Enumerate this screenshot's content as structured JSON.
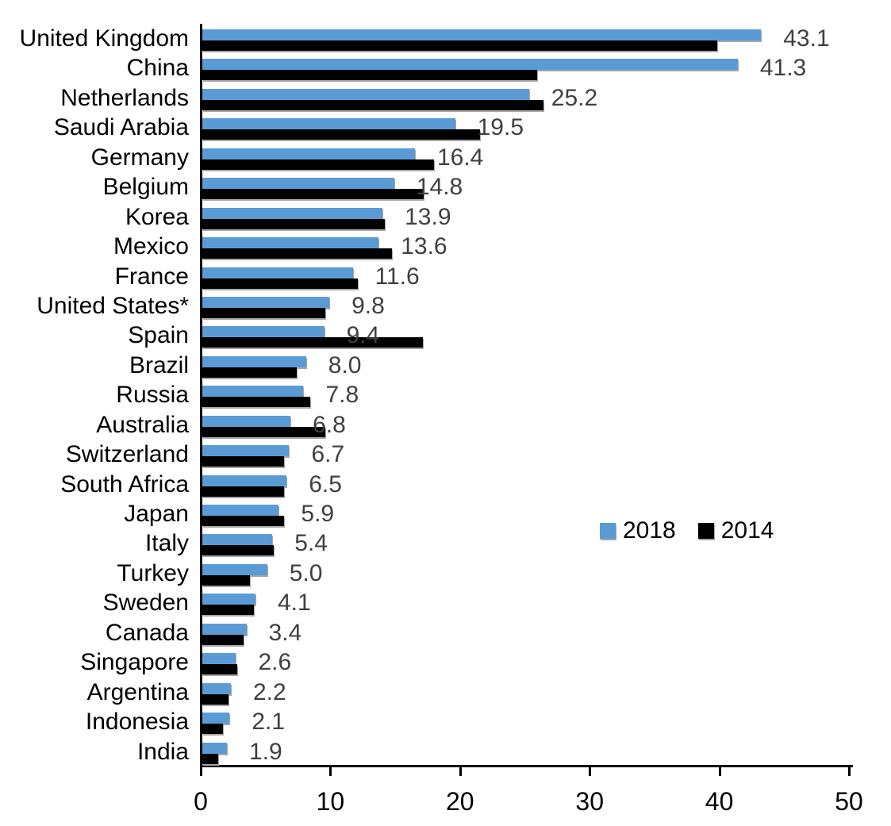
{
  "chart_data": {
    "type": "bar",
    "orientation": "horizontal",
    "title": "",
    "xlabel": "",
    "ylabel": "",
    "xlim": [
      0,
      50
    ],
    "x_ticks": [
      0,
      10,
      20,
      30,
      40,
      50
    ],
    "x_tick_labels": [
      "0",
      "10",
      "20",
      "30",
      "40",
      "50"
    ],
    "grid": false,
    "legend_position": "middle-right",
    "categories": [
      "United Kingdom",
      "China",
      "Netherlands",
      "Saudi Arabia",
      "Germany",
      "Belgium",
      "Korea",
      "Mexico",
      "France",
      "United States*",
      "Spain",
      "Brazil",
      "Russia",
      "Australia",
      "Switzerland",
      "South Africa",
      "Japan",
      "Italy",
      "Turkey",
      "Sweden",
      "Canada",
      "Singapore",
      "Argentina",
      "Indonesia",
      "India"
    ],
    "series": [
      {
        "name": "2018",
        "color": "#5B9BD5",
        "values": [
          43.1,
          41.3,
          25.2,
          19.5,
          16.4,
          14.8,
          13.9,
          13.6,
          11.6,
          9.8,
          9.4,
          8.0,
          7.8,
          6.8,
          6.7,
          6.5,
          5.9,
          5.4,
          5.0,
          4.1,
          3.4,
          2.6,
          2.2,
          2.1,
          1.9
        ]
      },
      {
        "name": "2014",
        "color": "#000000",
        "values": [
          39.7,
          25.8,
          26.3,
          21.4,
          17.9,
          17.1,
          14.1,
          14.6,
          12.0,
          9.5,
          17.0,
          7.3,
          8.3,
          9.5,
          6.3,
          6.3,
          6.3,
          5.5,
          3.7,
          4.0,
          3.2,
          2.7,
          2.0,
          1.6,
          1.2
        ]
      }
    ],
    "data_labels": [
      "43.1",
      "41.3",
      "25.2",
      "19.5",
      "16.4",
      "14.8",
      "13.9",
      "13.6",
      "11.6",
      "9.8",
      "9.4",
      "8.0",
      "7.8",
      "6.8",
      "6.7",
      "6.5",
      "5.9",
      "5.4",
      "5.0",
      "4.1",
      "3.4",
      "2.6",
      "2.2",
      "2.1",
      "1.9"
    ],
    "data_label_series": "2018"
  },
  "legend": {
    "items": [
      {
        "label": "2018",
        "color": "#5B9BD5"
      },
      {
        "label": "2014",
        "color": "#000000"
      }
    ]
  },
  "colors": {
    "bar_2018": "#5B9BD5",
    "bar_2014": "#000000",
    "value_label": "#404040",
    "axis": "#000000",
    "background": "#FFFFFF"
  }
}
